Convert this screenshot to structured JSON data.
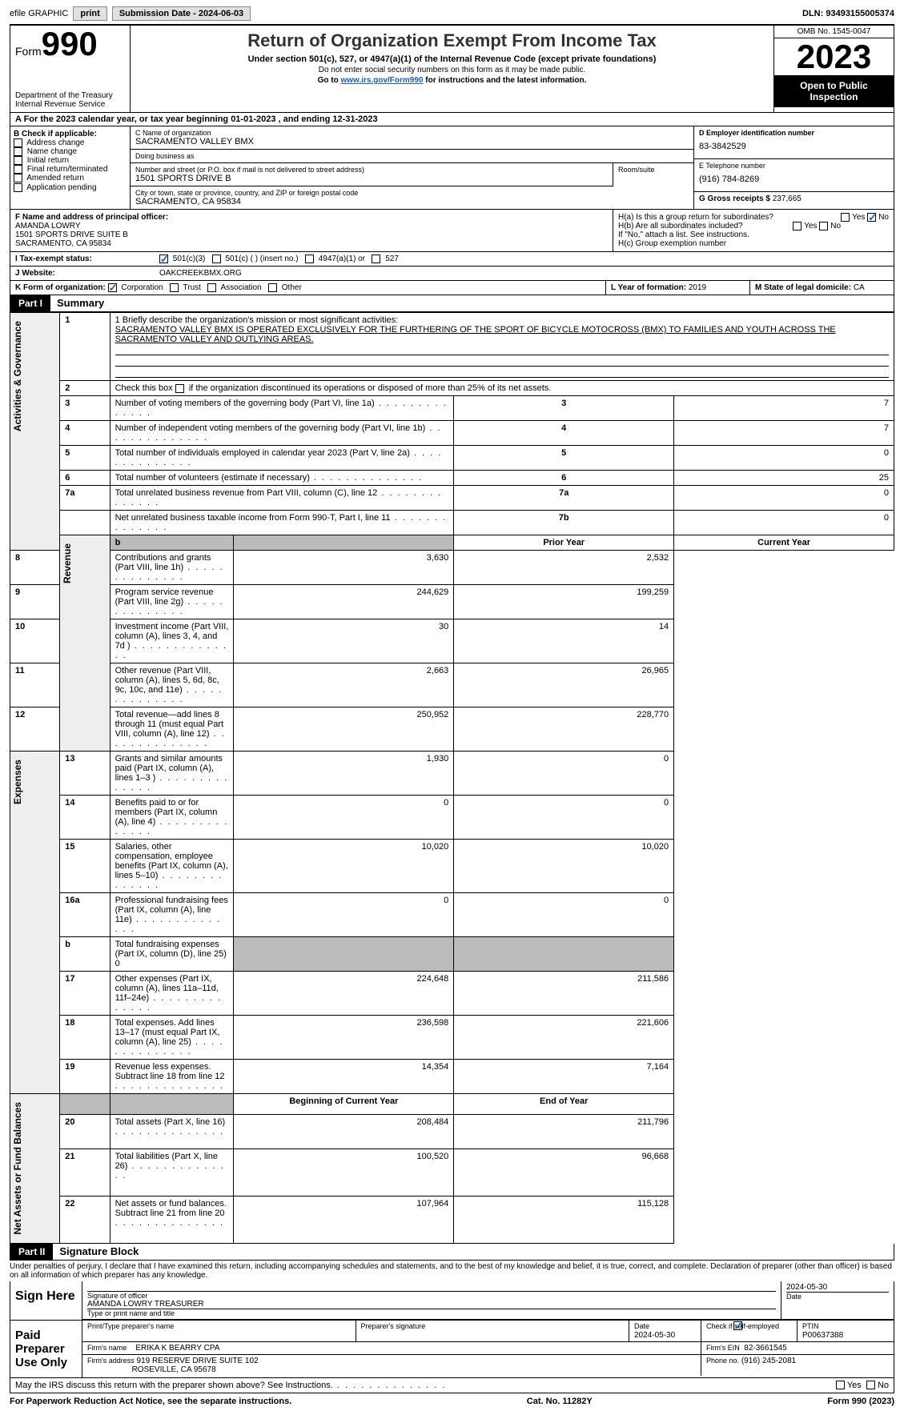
{
  "topbar": {
    "efile": "efile GRAPHIC",
    "print": "print",
    "sub_label": "Submission Date - ",
    "sub_date": "2024-06-03",
    "dln": "DLN: 93493155005374"
  },
  "header": {
    "form_label": "Form",
    "form_num": "990",
    "dept": "Department of the Treasury\nInternal Revenue Service",
    "title": "Return of Organization Exempt From Income Tax",
    "sub": "Under section 501(c), 527, or 4947(a)(1) of the Internal Revenue Code (except private foundations)",
    "note1": "Do not enter social security numbers on this form as it may be made public.",
    "note2_a": "Go to ",
    "note2_link": "www.irs.gov/Form990",
    "note2_b": " for instructions and the latest information.",
    "omb": "OMB No. 1545-0047",
    "year": "2023",
    "open": "Open to Public Inspection"
  },
  "line_a": "A For the 2023 calendar year, or tax year beginning 01-01-2023    , and ending 12-31-2023",
  "box_b": {
    "title": "B Check if applicable:",
    "items": [
      "Address change",
      "Name change",
      "Initial return",
      "Final return/terminated",
      "Amended return",
      "Application pending"
    ]
  },
  "box_c": {
    "name_label": "C Name of organization",
    "name": "SACRAMENTO VALLEY BMX",
    "dba_label": "Doing business as",
    "dba": "",
    "street_label": "Number and street (or P.O. box if mail is not delivered to street address)",
    "street": "1501 SPORTS DRIVE B",
    "room_label": "Room/suite",
    "city_label": "City or town, state or province, country, and ZIP or foreign postal code",
    "city": "SACRAMENTO, CA  95834"
  },
  "box_d": {
    "label": "D Employer identification number",
    "val": "83-3842529"
  },
  "box_e": {
    "label": "E Telephone number",
    "val": "(916) 784-8269"
  },
  "box_g": {
    "label": "G Gross receipts $",
    "val": "237,665"
  },
  "box_f": {
    "label": "F  Name and address of principal officer:",
    "name": "AMANDA LOWRY",
    "street": "1501 SPORTS DRIVE SUITE B",
    "city": "SACRAMENTO, CA  95834"
  },
  "box_h": {
    "a": "H(a)  Is this a group return for subordinates?",
    "b": "H(b)  Are all subordinates included?",
    "b_note": "If \"No,\" attach a list. See instructions.",
    "c": "H(c)  Group exemption number"
  },
  "line_i": {
    "label": "I    Tax-exempt status:",
    "opts": [
      "501(c)(3)",
      "501(c) (  ) (insert no.)",
      "4947(a)(1) or",
      "527"
    ]
  },
  "line_j": {
    "label": "J    Website:",
    "val": "OAKCREEKBMX.ORG"
  },
  "line_k": {
    "label": "K Form of organization:",
    "opts": [
      "Corporation",
      "Trust",
      "Association",
      "Other"
    ]
  },
  "line_l": {
    "label": "L Year of formation:",
    "val": "2019"
  },
  "line_m": {
    "label": "M State of legal domicile:",
    "val": "CA"
  },
  "part1": {
    "hdr": "Part I",
    "title": "Summary"
  },
  "summary": {
    "side1": "Activities & Governance",
    "side2": "Revenue",
    "side3": "Expenses",
    "side4": "Net Assets or Fund Balances",
    "q1_label": "1   Briefly describe the organization's mission or most significant activities:",
    "q1": "SACRAMENTO VALLEY BMX IS OPERATED EXCLUSIVELY FOR THE FURTHERING OF THE SPORT OF BICYCLE MOTOCROSS (BMX) TO FAMILIES AND YOUTH ACROSS THE SACRAMENTO VALLEY AND OUTLYING AREAS.",
    "q2": "2   Check this box       if the organization discontinued its operations or disposed of more than 25% of its net assets.",
    "rows_a": [
      {
        "n": "3",
        "d": "Number of voting members of the governing body (Part VI, line 1a)",
        "b": "3",
        "v": "7"
      },
      {
        "n": "4",
        "d": "Number of independent voting members of the governing body (Part VI, line 1b)",
        "b": "4",
        "v": "7"
      },
      {
        "n": "5",
        "d": "Total number of individuals employed in calendar year 2023 (Part V, line 2a)",
        "b": "5",
        "v": "0"
      },
      {
        "n": "6",
        "d": "Total number of volunteers (estimate if necessary)",
        "b": "6",
        "v": "25"
      },
      {
        "n": "7a",
        "d": "Total unrelated business revenue from Part VIII, column (C), line 12",
        "b": "7a",
        "v": "0"
      },
      {
        "n": "",
        "d": "Net unrelated business taxable income from Form 990-T, Part I, line 11",
        "b": "7b",
        "v": "0"
      }
    ],
    "col_hdr": [
      "Prior Year",
      "Current Year"
    ],
    "rows_rev": [
      {
        "n": "8",
        "d": "Contributions and grants (Part VIII, line 1h)",
        "p": "3,630",
        "c": "2,532"
      },
      {
        "n": "9",
        "d": "Program service revenue (Part VIII, line 2g)",
        "p": "244,629",
        "c": "199,259"
      },
      {
        "n": "10",
        "d": "Investment income (Part VIII, column (A), lines 3, 4, and 7d )",
        "p": "30",
        "c": "14"
      },
      {
        "n": "11",
        "d": "Other revenue (Part VIII, column (A), lines 5, 6d, 8c, 9c, 10c, and 11e)",
        "p": "2,663",
        "c": "26,965"
      },
      {
        "n": "12",
        "d": "Total revenue—add lines 8 through 11 (must equal Part VIII, column (A), line 12)",
        "p": "250,952",
        "c": "228,770"
      }
    ],
    "rows_exp": [
      {
        "n": "13",
        "d": "Grants and similar amounts paid (Part IX, column (A), lines 1–3 )",
        "p": "1,930",
        "c": "0"
      },
      {
        "n": "14",
        "d": "Benefits paid to or for members (Part IX, column (A), line 4)",
        "p": "0",
        "c": "0"
      },
      {
        "n": "15",
        "d": "Salaries, other compensation, employee benefits (Part IX, column (A), lines 5–10)",
        "p": "10,020",
        "c": "10,020"
      },
      {
        "n": "16a",
        "d": "Professional fundraising fees (Part IX, column (A), line 11e)",
        "p": "0",
        "c": "0"
      },
      {
        "n": "b",
        "d": "Total fundraising expenses (Part IX, column (D), line 25) 0",
        "p": "shade",
        "c": "shade"
      },
      {
        "n": "17",
        "d": "Other expenses (Part IX, column (A), lines 11a–11d, 11f–24e)",
        "p": "224,648",
        "c": "211,586"
      },
      {
        "n": "18",
        "d": "Total expenses. Add lines 13–17 (must equal Part IX, column (A), line 25)",
        "p": "236,598",
        "c": "221,606"
      },
      {
        "n": "19",
        "d": "Revenue less expenses. Subtract line 18 from line 12",
        "p": "14,354",
        "c": "7,164"
      }
    ],
    "col_hdr2": [
      "Beginning of Current Year",
      "End of Year"
    ],
    "rows_net": [
      {
        "n": "20",
        "d": "Total assets (Part X, line 16)",
        "p": "208,484",
        "c": "211,796"
      },
      {
        "n": "21",
        "d": "Total liabilities (Part X, line 26)",
        "p": "100,520",
        "c": "96,668"
      },
      {
        "n": "22",
        "d": "Net assets or fund balances. Subtract line 21 from line 20",
        "p": "107,964",
        "c": "115,128"
      }
    ]
  },
  "part2": {
    "hdr": "Part II",
    "title": "Signature Block"
  },
  "sig": {
    "decl": "Under penalties of perjury, I declare that I have examined this return, including accompanying schedules and statements, and to the best of my knowledge and belief, it is true, correct, and complete. Declaration of preparer (other than officer) is based on all information of which preparer has any knowledge.",
    "sign_here": "Sign Here",
    "sig_officer": "Signature of officer",
    "officer": "AMANDA LOWRY  TREASURER",
    "type_label": "Type or print name and title",
    "date1": "2024-05-30",
    "paid": "Paid Preparer Use Only",
    "prep_name_label": "Print/Type preparer's name",
    "prep_sig_label": "Preparer's signature",
    "date_label": "Date",
    "date2": "2024-05-30",
    "check_label": "Check        if self-employed",
    "ptin_label": "PTIN",
    "ptin": "P00637388",
    "firm_name_label": "Firm's name",
    "firm_name": "ERIKA K BEARRY CPA",
    "firm_ein_label": "Firm's EIN",
    "firm_ein": "82-3661545",
    "firm_addr_label": "Firm's address",
    "firm_addr1": "919 RESERVE DRIVE SUITE 102",
    "firm_addr2": "ROSEVILLE, CA  95678",
    "phone_label": "Phone no.",
    "phone": "(916) 245-2081",
    "discuss": "May the IRS discuss this return with the preparer shown above? See Instructions."
  },
  "footer": {
    "left": "For Paperwork Reduction Act Notice, see the separate instructions.",
    "mid": "Cat. No. 11282Y",
    "right": "Form 990 (2023)"
  },
  "yes": "Yes",
  "no": "No"
}
